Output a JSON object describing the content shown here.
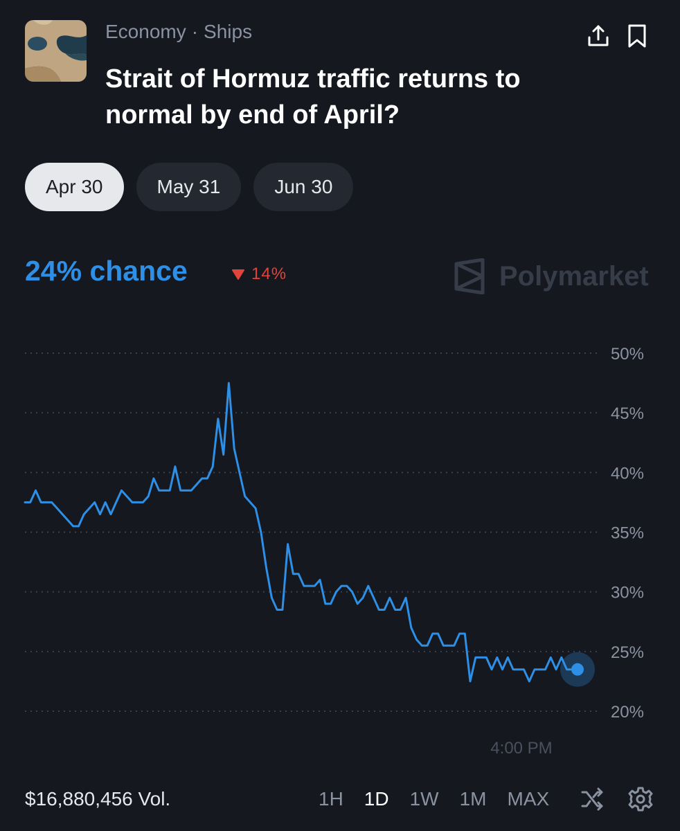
{
  "market": {
    "thumbnail_icon": "strait-satellite-thumbnail",
    "category": "Economy",
    "separator": "·",
    "subcategory": "Ships",
    "title": "Strait of Hormuz traffic returns to normal by end of April?"
  },
  "actions": {
    "share_icon": "share-icon",
    "bookmark_icon": "bookmark-icon"
  },
  "date_tabs": [
    {
      "label": "Apr 30",
      "selected": true
    },
    {
      "label": "May 31",
      "selected": false
    },
    {
      "label": "Jun 30",
      "selected": false
    }
  ],
  "probability": {
    "text": "24% chance",
    "change": "14%",
    "change_direction": "down"
  },
  "brand": {
    "watermark": "Polymarket"
  },
  "colors": {
    "background": "#15181f",
    "accent": "#2e8fe6",
    "negative": "#e0443b"
  },
  "chart_data": {
    "type": "line",
    "title": "",
    "xlabel": "",
    "ylabel": "",
    "ylim": [
      20,
      50
    ],
    "y_ticks": [
      "50%",
      "45%",
      "40%",
      "35%",
      "30%",
      "25%",
      "20%"
    ],
    "x_tick_label": "4:00 PM",
    "grid": "dotted-horizontal",
    "series": [
      {
        "values": [
          37.5,
          37.5,
          38.5,
          37.5,
          37.5,
          37.5,
          37,
          36.5,
          36,
          35.5,
          35.5,
          36.5,
          37,
          37.5,
          36.5,
          37.5,
          36.5,
          37.5,
          38.5,
          38,
          37.5,
          37.5,
          37.5,
          38,
          39.5,
          38.5,
          38.5,
          38.5,
          40.5,
          38.5,
          38.5,
          38.5,
          39,
          39.5,
          39.5,
          40.5,
          44.5,
          41.5,
          47.5,
          42,
          40,
          38,
          37.5,
          37,
          35,
          32,
          29.5,
          28.5,
          28.5,
          34,
          31.5,
          31.5,
          30.5,
          30.5,
          30.5,
          31,
          29,
          29,
          30,
          30.5,
          30.5,
          30,
          29,
          29.5,
          30.5,
          29.5,
          28.5,
          28.5,
          29.5,
          28.5,
          28.5,
          29.5,
          27,
          26,
          25.5,
          25.5,
          26.5,
          26.5,
          25.5,
          25.5,
          25.5,
          26.5,
          26.5,
          22.5,
          24.5,
          24.5,
          24.5,
          23.5,
          24.5,
          23.5,
          24.5,
          23.5,
          23.5,
          23.5,
          22.5,
          23.5,
          23.5,
          23.5,
          24.5,
          23.5,
          24.5,
          23.5,
          23.5,
          23.5
        ]
      }
    ]
  },
  "footer": {
    "volume": "$16,880,456 Vol.",
    "ranges": [
      "1H",
      "1D",
      "1W",
      "1M",
      "MAX"
    ],
    "selected_range": "1D",
    "shuffle_icon": "shuffle-icon",
    "settings_icon": "gear-icon"
  }
}
